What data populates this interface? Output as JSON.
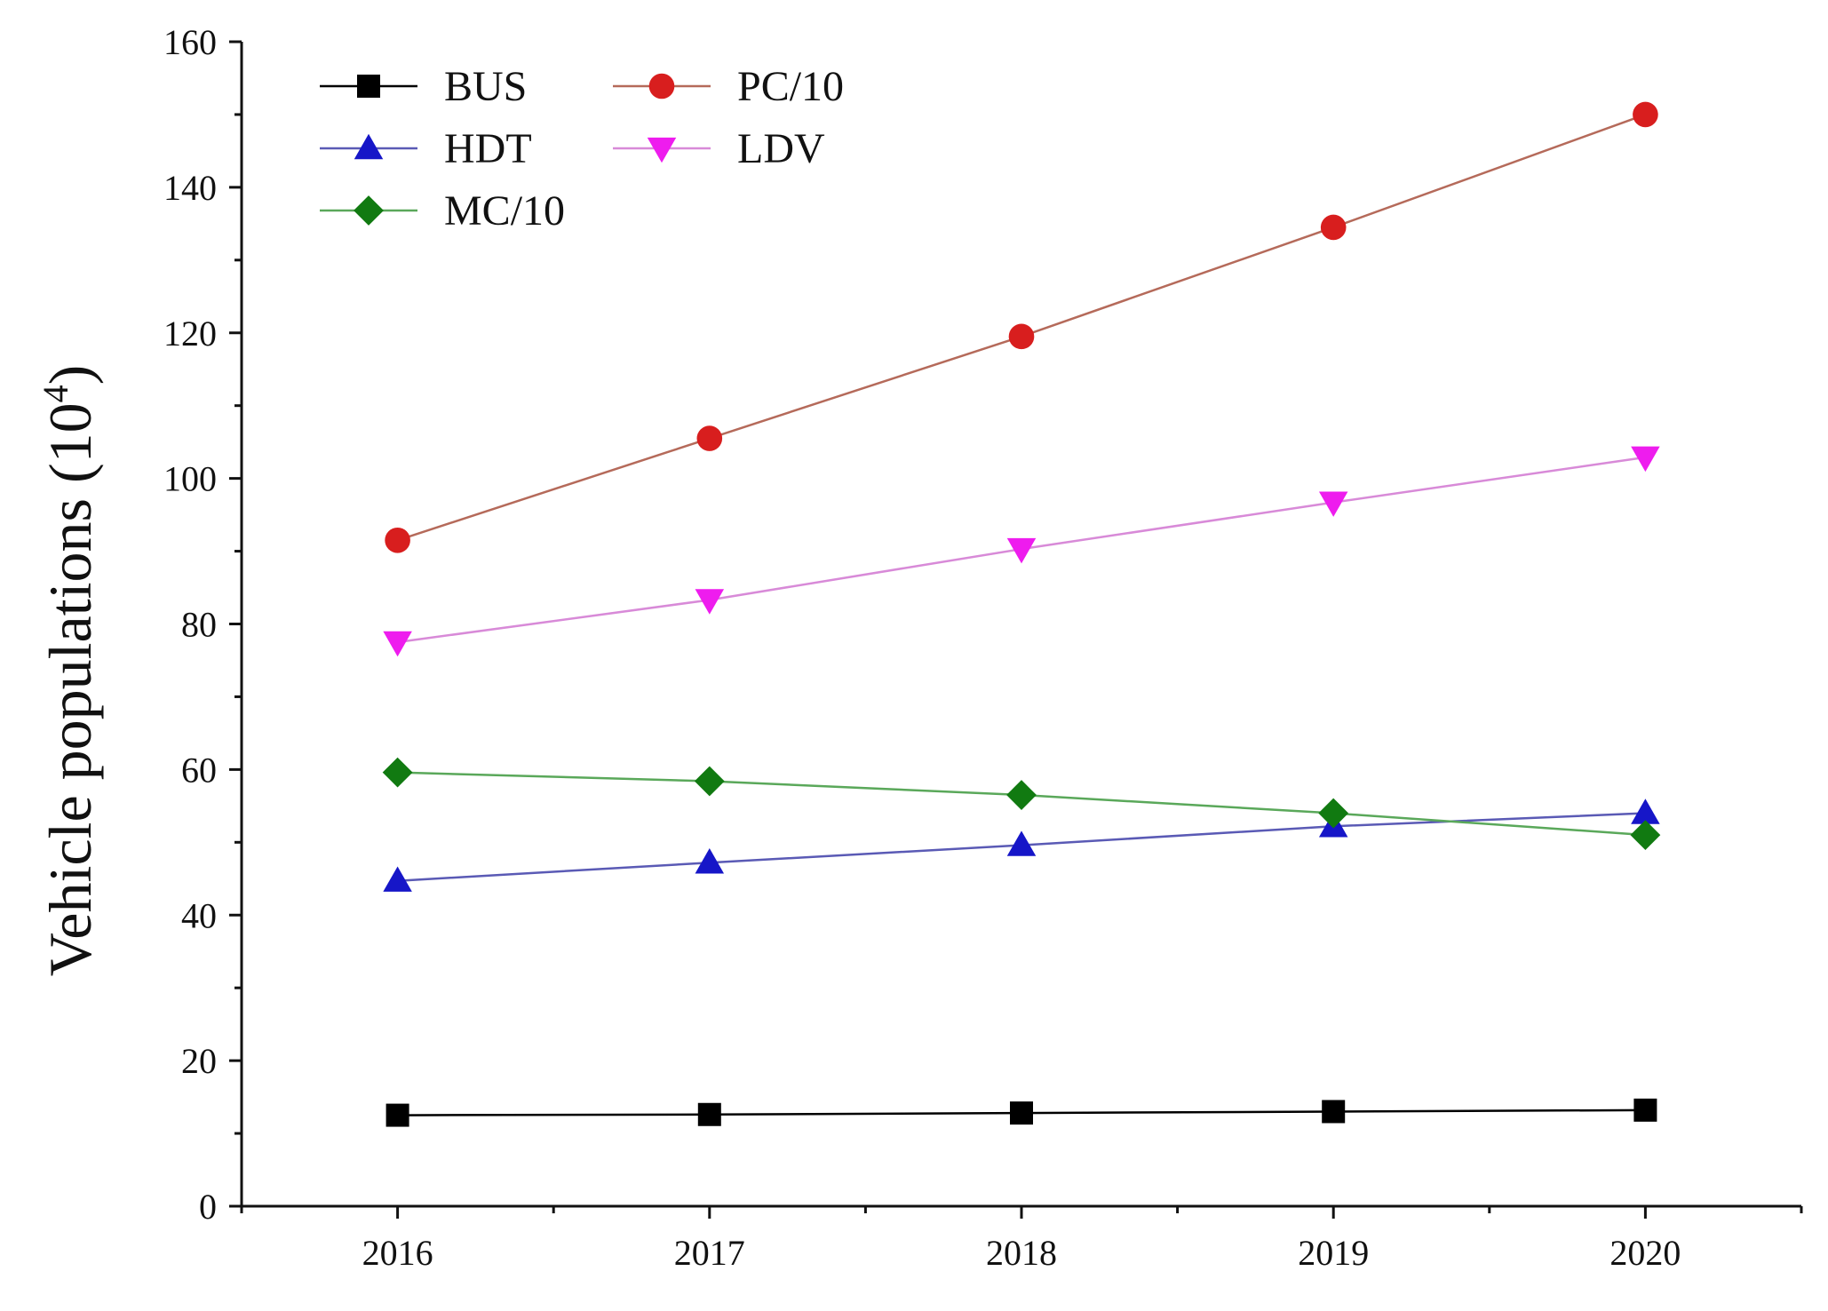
{
  "chart_data": {
    "type": "line",
    "title": "",
    "xlabel": "",
    "ylabel": "Vehicle populations (10",
    "ylabel_superscript": "4",
    "ylabel_suffix": ")",
    "x": [
      2016,
      2017,
      2018,
      2019,
      2020
    ],
    "x_tick_labels": [
      "2016",
      "2017",
      "2018",
      "2019",
      "2020"
    ],
    "xlim": [
      2015.5,
      2020.5
    ],
    "ylim": [
      0,
      160
    ],
    "y_ticks": [
      0,
      20,
      40,
      60,
      80,
      100,
      120,
      140,
      160
    ],
    "y_tick_labels": [
      "0",
      "20",
      "40",
      "60",
      "80",
      "100",
      "120",
      "140",
      "160"
    ],
    "grid": false,
    "legend_position": "top-left",
    "series": [
      {
        "name": "BUS",
        "color": "#000000",
        "marker": "square",
        "values": [
          12.5,
          12.6,
          12.8,
          13.0,
          13.2
        ]
      },
      {
        "name": "PC/10",
        "color": "#d81e1e",
        "line_color": "#b56a5a",
        "marker": "circle",
        "values": [
          91.5,
          105.5,
          119.5,
          134.5,
          150.0
        ]
      },
      {
        "name": "HDT",
        "color": "#1616c8",
        "line_color": "#5a5ab5",
        "marker": "triangle-up",
        "values": [
          44.7,
          47.2,
          49.6,
          52.2,
          54.0
        ]
      },
      {
        "name": "LDV",
        "color": "#ee1cee",
        "line_color": "#d88ad8",
        "marker": "triangle-down",
        "values": [
          77.5,
          83.3,
          90.3,
          96.7,
          102.9
        ]
      },
      {
        "name": "MC/10",
        "color": "#117a11",
        "line_color": "#5aa85a",
        "marker": "diamond",
        "values": [
          59.6,
          58.4,
          56.5,
          54.0,
          51.0
        ]
      }
    ]
  }
}
